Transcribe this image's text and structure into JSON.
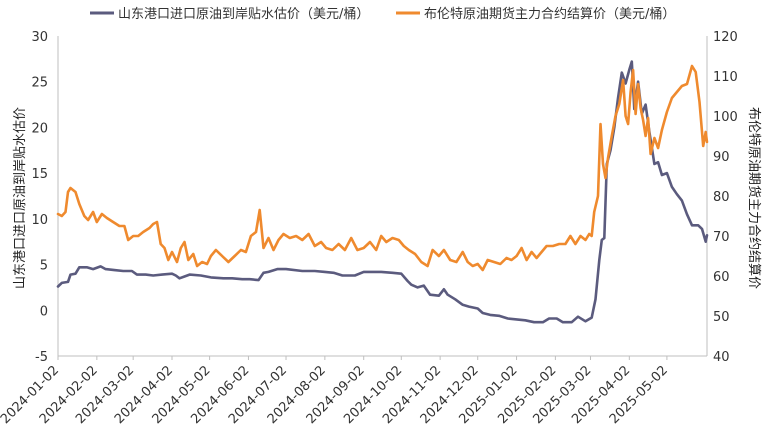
{
  "chart_data": {
    "type": "line",
    "legend_position": "top",
    "grid": false,
    "ylabel": "山东港口进口原油到岸贴水估价",
    "y2label": "布伦特原油期货主力合约结算价",
    "ylim": [
      -5,
      30
    ],
    "y_ticks": [
      "-5",
      "0",
      "5",
      "10",
      "15",
      "20",
      "25",
      "30"
    ],
    "y2lim": [
      40,
      120
    ],
    "y2_ticks": [
      "40",
      "50",
      "60",
      "70",
      "80",
      "90",
      "100",
      "110",
      "120"
    ],
    "x_tick_labels": [
      "2024-01-02",
      "2024-02-02",
      "2024-03-02",
      "2024-04-02",
      "2024-05-02",
      "2024-06-02",
      "2024-07-02",
      "2024-08-02",
      "2024-09-02",
      "2024-10-02",
      "2024-11-02",
      "2024-12-02",
      "2025-01-02",
      "2025-02-02",
      "2025-03-02",
      "2025-04-02",
      "2025-05-02"
    ],
    "series": [
      {
        "name": "山东港口进口原油到岸贴水估价（美元/桶）",
        "axis": "left",
        "color": "#5b5b7e",
        "points": [
          [
            "2024-01-02",
            2.6
          ],
          [
            "2024-01-05",
            3.0
          ],
          [
            "2024-01-10",
            3.1
          ],
          [
            "2024-01-12",
            3.9
          ],
          [
            "2024-01-16",
            4.0
          ],
          [
            "2024-01-19",
            4.7
          ],
          [
            "2024-01-25",
            4.7
          ],
          [
            "2024-01-30",
            4.5
          ],
          [
            "2024-02-05",
            4.8
          ],
          [
            "2024-02-09",
            4.5
          ],
          [
            "2024-02-16",
            4.4
          ],
          [
            "2024-02-23",
            4.3
          ],
          [
            "2024-03-01",
            4.3
          ],
          [
            "2024-03-05",
            3.9
          ],
          [
            "2024-03-12",
            3.9
          ],
          [
            "2024-03-18",
            3.8
          ],
          [
            "2024-03-25",
            3.9
          ],
          [
            "2024-04-02",
            4.0
          ],
          [
            "2024-04-05",
            3.8
          ],
          [
            "2024-04-08",
            3.5
          ],
          [
            "2024-04-12",
            3.7
          ],
          [
            "2024-04-16",
            3.9
          ],
          [
            "2024-04-25",
            3.8
          ],
          [
            "2024-05-03",
            3.6
          ],
          [
            "2024-05-13",
            3.5
          ],
          [
            "2024-05-20",
            3.5
          ],
          [
            "2024-05-28",
            3.4
          ],
          [
            "2024-06-03",
            3.4
          ],
          [
            "2024-06-10",
            3.3
          ],
          [
            "2024-06-14",
            4.1
          ],
          [
            "2024-06-18",
            4.2
          ],
          [
            "2024-06-25",
            4.5
          ],
          [
            "2024-07-02",
            4.5
          ],
          [
            "2024-07-15",
            4.3
          ],
          [
            "2024-07-25",
            4.3
          ],
          [
            "2024-08-02",
            4.2
          ],
          [
            "2024-08-09",
            4.1
          ],
          [
            "2024-08-16",
            3.8
          ],
          [
            "2024-08-26",
            3.8
          ],
          [
            "2024-09-02",
            4.2
          ],
          [
            "2024-09-16",
            4.2
          ],
          [
            "2024-09-25",
            4.1
          ],
          [
            "2024-10-02",
            4.0
          ],
          [
            "2024-10-07",
            3.2
          ],
          [
            "2024-10-10",
            2.8
          ],
          [
            "2024-10-15",
            2.5
          ],
          [
            "2024-10-20",
            2.7
          ],
          [
            "2024-10-25",
            1.7
          ],
          [
            "2024-11-01",
            1.6
          ],
          [
            "2024-11-05",
            2.3
          ],
          [
            "2024-11-08",
            1.7
          ],
          [
            "2024-11-14",
            1.2
          ],
          [
            "2024-11-20",
            0.6
          ],
          [
            "2024-11-25",
            0.4
          ],
          [
            "2024-12-02",
            0.2
          ],
          [
            "2024-12-06",
            -0.3
          ],
          [
            "2024-12-12",
            -0.5
          ],
          [
            "2024-12-19",
            -0.6
          ],
          [
            "2024-12-26",
            -0.9
          ],
          [
            "2025-01-02",
            -1.0
          ],
          [
            "2025-01-09",
            -1.1
          ],
          [
            "2025-01-16",
            -1.3
          ],
          [
            "2025-01-23",
            -1.3
          ],
          [
            "2025-01-28",
            -0.9
          ],
          [
            "2025-02-03",
            -0.9
          ],
          [
            "2025-02-08",
            -1.3
          ],
          [
            "2025-02-15",
            -1.3
          ],
          [
            "2025-02-20",
            -0.7
          ],
          [
            "2025-02-26",
            -1.2
          ],
          [
            "2025-03-03",
            -0.8
          ],
          [
            "2025-03-06",
            1.2
          ],
          [
            "2025-03-09",
            5.5
          ],
          [
            "2025-03-11",
            7.7
          ],
          [
            "2025-03-13",
            7.9
          ],
          [
            "2025-03-15",
            16.0
          ],
          [
            "2025-03-18",
            17.5
          ],
          [
            "2025-03-21",
            20.0
          ],
          [
            "2025-03-24",
            23.2
          ],
          [
            "2025-03-27",
            26.0
          ],
          [
            "2025-03-30",
            24.8
          ],
          [
            "2025-04-02",
            26.3
          ],
          [
            "2025-04-04",
            27.2
          ],
          [
            "2025-04-06",
            22.0
          ],
          [
            "2025-04-09",
            25.0
          ],
          [
            "2025-04-12",
            21.5
          ],
          [
            "2025-04-15",
            22.5
          ],
          [
            "2025-04-18",
            19.5
          ],
          [
            "2025-04-22",
            16.0
          ],
          [
            "2025-04-25",
            16.2
          ],
          [
            "2025-04-28",
            14.8
          ],
          [
            "2025-05-02",
            15.0
          ],
          [
            "2025-05-06",
            13.5
          ],
          [
            "2025-05-10",
            12.7
          ],
          [
            "2025-05-14",
            12.0
          ],
          [
            "2025-05-18",
            10.5
          ],
          [
            "2025-05-22",
            9.3
          ],
          [
            "2025-05-27",
            9.3
          ],
          [
            "2025-05-30",
            8.9
          ],
          [
            "2025-06-02",
            7.5
          ],
          [
            "2025-06-03",
            8.2
          ]
        ]
      },
      {
        "name": "布伦特原油期货主力合约结算价（美元/桶）",
        "axis": "right",
        "color": "#ef8a2e",
        "points": [
          [
            "2024-01-02",
            75.5
          ],
          [
            "2024-01-05",
            75.0
          ],
          [
            "2024-01-08",
            76.0
          ],
          [
            "2024-01-10",
            81.0
          ],
          [
            "2024-01-12",
            82.0
          ],
          [
            "2024-01-16",
            81.0
          ],
          [
            "2024-01-19",
            78.0
          ],
          [
            "2024-01-23",
            75.0
          ],
          [
            "2024-01-26",
            74.0
          ],
          [
            "2024-01-30",
            76.0
          ],
          [
            "2024-02-02",
            73.5
          ],
          [
            "2024-02-06",
            75.5
          ],
          [
            "2024-02-10",
            74.5
          ],
          [
            "2024-02-15",
            73.5
          ],
          [
            "2024-02-20",
            72.5
          ],
          [
            "2024-02-24",
            72.5
          ],
          [
            "2024-02-27",
            69.0
          ],
          [
            "2024-03-02",
            70.0
          ],
          [
            "2024-03-06",
            70.0
          ],
          [
            "2024-03-10",
            71.0
          ],
          [
            "2024-03-15",
            72.0
          ],
          [
            "2024-03-18",
            73.0
          ],
          [
            "2024-03-21",
            73.5
          ],
          [
            "2024-03-24",
            68.0
          ],
          [
            "2024-03-27",
            67.0
          ],
          [
            "2024-03-30",
            64.0
          ],
          [
            "2024-04-02",
            66.0
          ],
          [
            "2024-04-06",
            63.5
          ],
          [
            "2024-04-09",
            67.0
          ],
          [
            "2024-04-12",
            68.5
          ],
          [
            "2024-04-15",
            64.0
          ],
          [
            "2024-04-19",
            65.5
          ],
          [
            "2024-04-22",
            62.5
          ],
          [
            "2024-04-26",
            63.5
          ],
          [
            "2024-04-30",
            63.0
          ],
          [
            "2024-05-03",
            65.0
          ],
          [
            "2024-05-07",
            66.5
          ],
          [
            "2024-05-12",
            65.0
          ],
          [
            "2024-05-17",
            63.5
          ],
          [
            "2024-05-22",
            65.0
          ],
          [
            "2024-05-27",
            66.5
          ],
          [
            "2024-05-31",
            66.0
          ],
          [
            "2024-06-04",
            70.0
          ],
          [
            "2024-06-08",
            71.0
          ],
          [
            "2024-06-11",
            76.5
          ],
          [
            "2024-06-14",
            67.0
          ],
          [
            "2024-06-18",
            69.5
          ],
          [
            "2024-06-22",
            66.5
          ],
          [
            "2024-06-26",
            69.0
          ],
          [
            "2024-06-30",
            70.5
          ],
          [
            "2024-07-05",
            69.5
          ],
          [
            "2024-07-10",
            70.0
          ],
          [
            "2024-07-15",
            69.0
          ],
          [
            "2024-07-20",
            70.5
          ],
          [
            "2024-07-25",
            67.5
          ],
          [
            "2024-07-30",
            68.5
          ],
          [
            "2024-08-03",
            67.0
          ],
          [
            "2024-08-08",
            66.5
          ],
          [
            "2024-08-13",
            68.0
          ],
          [
            "2024-08-18",
            66.5
          ],
          [
            "2024-08-23",
            69.5
          ],
          [
            "2024-08-28",
            66.5
          ],
          [
            "2024-09-02",
            67.0
          ],
          [
            "2024-09-07",
            68.5
          ],
          [
            "2024-09-12",
            66.5
          ],
          [
            "2024-09-16",
            70.0
          ],
          [
            "2024-09-20",
            68.5
          ],
          [
            "2024-09-25",
            69.5
          ],
          [
            "2024-09-30",
            69.0
          ],
          [
            "2024-10-04",
            67.5
          ],
          [
            "2024-10-08",
            66.5
          ],
          [
            "2024-10-13",
            65.5
          ],
          [
            "2024-10-18",
            63.5
          ],
          [
            "2024-10-23",
            62.5
          ],
          [
            "2024-10-27",
            66.5
          ],
          [
            "2024-11-01",
            65.0
          ],
          [
            "2024-11-05",
            66.5
          ],
          [
            "2024-11-10",
            64.0
          ],
          [
            "2024-11-15",
            63.5
          ],
          [
            "2024-11-20",
            66.0
          ],
          [
            "2024-11-24",
            63.5
          ],
          [
            "2024-11-28",
            62.5
          ],
          [
            "2024-12-02",
            63.0
          ],
          [
            "2024-12-06",
            61.5
          ],
          [
            "2024-12-10",
            64.0
          ],
          [
            "2024-12-15",
            63.5
          ],
          [
            "2024-12-20",
            63.0
          ],
          [
            "2024-12-25",
            64.5
          ],
          [
            "2024-12-29",
            64.0
          ],
          [
            "2025-01-02",
            65.0
          ],
          [
            "2025-01-06",
            67.0
          ],
          [
            "2025-01-10",
            64.0
          ],
          [
            "2025-01-14",
            66.0
          ],
          [
            "2025-01-18",
            64.5
          ],
          [
            "2025-01-22",
            66.0
          ],
          [
            "2025-01-26",
            67.5
          ],
          [
            "2025-01-31",
            67.5
          ],
          [
            "2025-02-05",
            68.0
          ],
          [
            "2025-02-10",
            68.0
          ],
          [
            "2025-02-14",
            70.0
          ],
          [
            "2025-02-18",
            68.0
          ],
          [
            "2025-02-22",
            70.0
          ],
          [
            "2025-02-26",
            69.0
          ],
          [
            "2025-03-01",
            70.5
          ],
          [
            "2025-03-03",
            70.0
          ],
          [
            "2025-03-05",
            76.0
          ],
          [
            "2025-03-08",
            80.0
          ],
          [
            "2025-03-10",
            98.0
          ],
          [
            "2025-03-12",
            88.0
          ],
          [
            "2025-03-14",
            84.5
          ],
          [
            "2025-03-16",
            89.5
          ],
          [
            "2025-03-19",
            95.0
          ],
          [
            "2025-03-22",
            100.0
          ],
          [
            "2025-03-25",
            103.0
          ],
          [
            "2025-03-28",
            109.0
          ],
          [
            "2025-03-30",
            100.0
          ],
          [
            "2025-04-01",
            98.0
          ],
          [
            "2025-04-03",
            106.0
          ],
          [
            "2025-04-05",
            111.5
          ],
          [
            "2025-04-07",
            100.5
          ],
          [
            "2025-04-09",
            108.0
          ],
          [
            "2025-04-11",
            102.0
          ],
          [
            "2025-04-13",
            99.0
          ],
          [
            "2025-04-15",
            95.0
          ],
          [
            "2025-04-17",
            99.5
          ],
          [
            "2025-04-19",
            90.5
          ],
          [
            "2025-04-22",
            94.5
          ],
          [
            "2025-04-25",
            92.0
          ],
          [
            "2025-04-28",
            96.5
          ],
          [
            "2025-05-02",
            101.0
          ],
          [
            "2025-05-06",
            104.5
          ],
          [
            "2025-05-10",
            106.0
          ],
          [
            "2025-05-14",
            107.5
          ],
          [
            "2025-05-18",
            108.0
          ],
          [
            "2025-05-22",
            112.5
          ],
          [
            "2025-05-25",
            111.0
          ],
          [
            "2025-05-28",
            103.5
          ],
          [
            "2025-05-31",
            92.5
          ],
          [
            "2025-06-02",
            96.0
          ],
          [
            "2025-06-03",
            93.5
          ]
        ]
      }
    ]
  }
}
